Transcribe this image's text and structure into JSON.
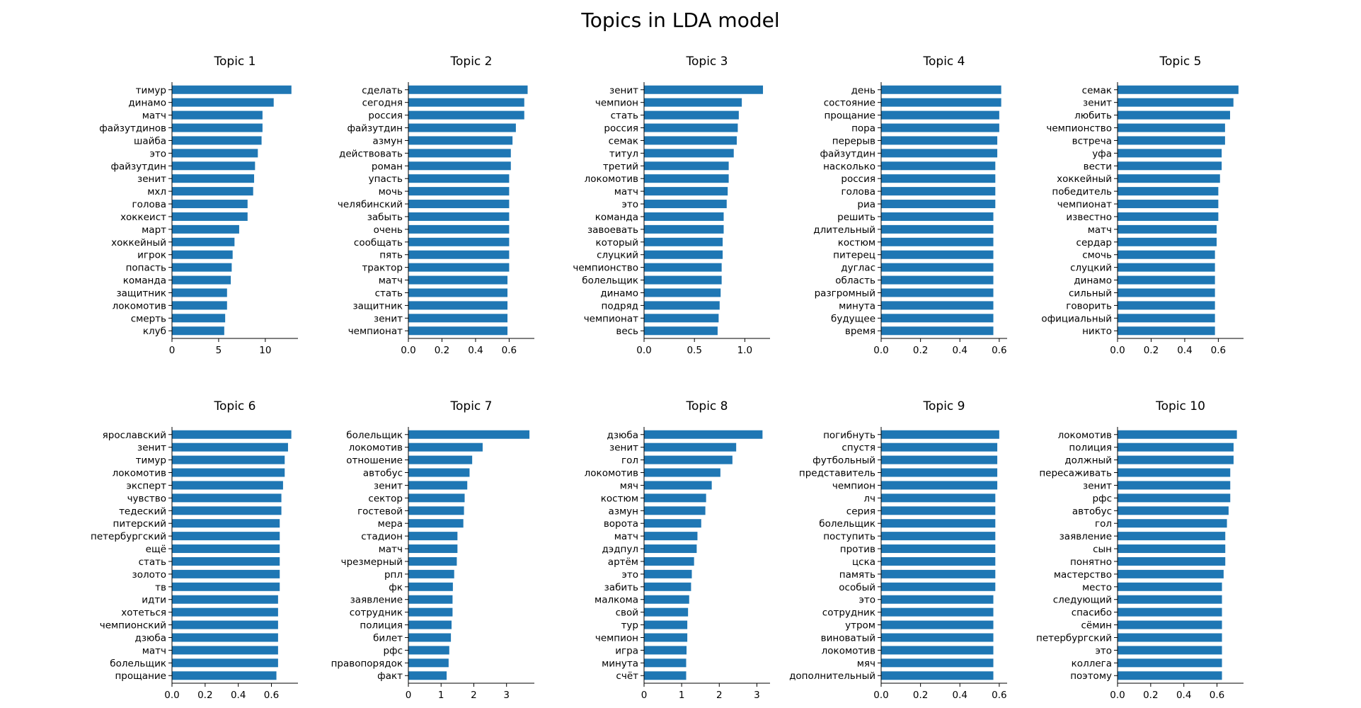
{
  "figure": {
    "title": "Topics in LDA model",
    "bar_color": "#1f77b4"
  },
  "chart_data": [
    {
      "type": "bar",
      "orientation": "horizontal",
      "title": "Topic 1",
      "categories": [
        "тимур",
        "динамо",
        "матч",
        "файзутдинов",
        "шайба",
        "это",
        "файзутдин",
        "зенит",
        "мхл",
        "голова",
        "хоккеист",
        "март",
        "хоккейный",
        "игрок",
        "попасть",
        "команда",
        "защитник",
        "локомотив",
        "смерть",
        "клуб"
      ],
      "values": [
        12.8,
        10.9,
        9.7,
        9.7,
        9.6,
        9.2,
        8.9,
        8.8,
        8.7,
        8.1,
        8.1,
        7.2,
        6.7,
        6.5,
        6.4,
        6.3,
        5.9,
        5.9,
        5.7,
        5.6
      ],
      "xlim": [
        0,
        13.5
      ],
      "xticks": [
        0,
        5,
        10
      ],
      "xtick_labels": [
        "0",
        "5",
        "10"
      ]
    },
    {
      "type": "bar",
      "orientation": "horizontal",
      "title": "Topic 2",
      "categories": [
        "сделать",
        "сегодня",
        "россия",
        "файзутдин",
        "азмун",
        "действовать",
        "роман",
        "упасть",
        "мочь",
        "челябинский",
        "забыть",
        "очень",
        "сообщать",
        "пять",
        "трактор",
        "матч",
        "стать",
        "защитник",
        "зенит",
        "чемпионат"
      ],
      "values": [
        0.71,
        0.69,
        0.69,
        0.64,
        0.62,
        0.61,
        0.61,
        0.6,
        0.6,
        0.6,
        0.6,
        0.6,
        0.6,
        0.6,
        0.6,
        0.59,
        0.59,
        0.59,
        0.59,
        0.59
      ],
      "xlim": [
        0,
        0.75
      ],
      "xticks": [
        0,
        0.2,
        0.4,
        0.6
      ],
      "xtick_labels": [
        "0.0",
        "0.2",
        "0.4",
        "0.6"
      ]
    },
    {
      "type": "bar",
      "orientation": "horizontal",
      "title": "Topic 3",
      "categories": [
        "зенит",
        "чемпион",
        "стать",
        "россия",
        "семак",
        "титул",
        "третий",
        "локомотив",
        "матч",
        "это",
        "команда",
        "завоевать",
        "который",
        "слуцкий",
        "чемпионство",
        "болельщик",
        "динамо",
        "подряд",
        "чемпионат",
        "весь"
      ],
      "values": [
        1.18,
        0.97,
        0.94,
        0.93,
        0.92,
        0.89,
        0.84,
        0.84,
        0.83,
        0.82,
        0.79,
        0.79,
        0.78,
        0.78,
        0.77,
        0.77,
        0.76,
        0.75,
        0.74,
        0.73
      ],
      "xlim": [
        0,
        1.25
      ],
      "xticks": [
        0,
        0.5,
        1.0
      ],
      "xtick_labels": [
        "0.0",
        "0.5",
        "1.0"
      ]
    },
    {
      "type": "bar",
      "orientation": "horizontal",
      "title": "Topic 4",
      "categories": [
        "день",
        "состояние",
        "прощание",
        "пора",
        "перерыв",
        "файзутдин",
        "насколько",
        "россия",
        "голова",
        "риа",
        "решить",
        "длительный",
        "костюм",
        "питерец",
        "дуглас",
        "область",
        "разгромный",
        "минута",
        "будущее",
        "время"
      ],
      "values": [
        0.61,
        0.61,
        0.6,
        0.6,
        0.59,
        0.59,
        0.58,
        0.58,
        0.58,
        0.58,
        0.57,
        0.57,
        0.57,
        0.57,
        0.57,
        0.57,
        0.57,
        0.57,
        0.57,
        0.57
      ],
      "xlim": [
        0,
        0.64
      ],
      "xticks": [
        0,
        0.2,
        0.4,
        0.6
      ],
      "xtick_labels": [
        "0.0",
        "0.2",
        "0.4",
        "0.6"
      ]
    },
    {
      "type": "bar",
      "orientation": "horizontal",
      "title": "Topic 5",
      "categories": [
        "семак",
        "зенит",
        "любить",
        "чемпионство",
        "встреча",
        "уфа",
        "вести",
        "хоккейный",
        "победитель",
        "чемпионат",
        "известно",
        "матч",
        "сердар",
        "смочь",
        "слуцкий",
        "динамо",
        "сильный",
        "говорить",
        "официальный",
        "никто"
      ],
      "values": [
        0.72,
        0.69,
        0.67,
        0.64,
        0.64,
        0.62,
        0.62,
        0.61,
        0.6,
        0.6,
        0.6,
        0.59,
        0.59,
        0.58,
        0.58,
        0.58,
        0.58,
        0.58,
        0.58,
        0.58
      ],
      "xlim": [
        0,
        0.75
      ],
      "xticks": [
        0,
        0.2,
        0.4,
        0.6
      ],
      "xtick_labels": [
        "0.0",
        "0.2",
        "0.4",
        "0.6"
      ]
    },
    {
      "type": "bar",
      "orientation": "horizontal",
      "title": "Topic 6",
      "categories": [
        "ярославский",
        "зенит",
        "тимур",
        "локомотив",
        "эксперт",
        "чувство",
        "тедеский",
        "питерский",
        "петербургский",
        "ещё",
        "стать",
        "золото",
        "тв",
        "идти",
        "хотеться",
        "чемпионский",
        "дзюба",
        "матч",
        "болельщик",
        "прощание"
      ],
      "values": [
        0.72,
        0.7,
        0.68,
        0.68,
        0.67,
        0.66,
        0.66,
        0.65,
        0.65,
        0.65,
        0.65,
        0.65,
        0.65,
        0.64,
        0.64,
        0.64,
        0.64,
        0.64,
        0.64,
        0.63
      ],
      "xlim": [
        0,
        0.76
      ],
      "xticks": [
        0,
        0.2,
        0.4,
        0.6
      ],
      "xtick_labels": [
        "0.0",
        "0.2",
        "0.4",
        "0.6"
      ]
    },
    {
      "type": "bar",
      "orientation": "horizontal",
      "title": "Topic 7",
      "categories": [
        "болельщик",
        "локомотив",
        "отношение",
        "автобус",
        "зенит",
        "сектор",
        "гостевой",
        "мера",
        "стадион",
        "матч",
        "чрезмерный",
        "рпл",
        "фк",
        "заявление",
        "сотрудник",
        "полиция",
        "билет",
        "рфс",
        "правопорядок",
        "факт"
      ],
      "values": [
        3.7,
        2.27,
        1.95,
        1.87,
        1.8,
        1.72,
        1.7,
        1.68,
        1.5,
        1.5,
        1.48,
        1.4,
        1.36,
        1.35,
        1.35,
        1.32,
        1.3,
        1.25,
        1.23,
        1.17
      ],
      "xlim": [
        0,
        3.85
      ],
      "xticks": [
        0,
        1,
        2,
        3
      ],
      "xtick_labels": [
        "0",
        "1",
        "2",
        "3"
      ]
    },
    {
      "type": "bar",
      "orientation": "horizontal",
      "title": "Topic 8",
      "categories": [
        "дзюба",
        "зенит",
        "гол",
        "локомотив",
        "мяч",
        "костюм",
        "азмун",
        "ворота",
        "матч",
        "дэдпул",
        "артём",
        "это",
        "забить",
        "малкома",
        "свой",
        "тур",
        "чемпион",
        "игра",
        "минута",
        "счёт"
      ],
      "values": [
        3.15,
        2.45,
        2.35,
        2.03,
        1.8,
        1.65,
        1.63,
        1.52,
        1.42,
        1.4,
        1.33,
        1.27,
        1.25,
        1.2,
        1.17,
        1.15,
        1.15,
        1.13,
        1.12,
        1.12
      ],
      "xlim": [
        0,
        3.35
      ],
      "xticks": [
        0,
        1,
        2,
        3
      ],
      "xtick_labels": [
        "0",
        "1",
        "2",
        "3"
      ]
    },
    {
      "type": "bar",
      "orientation": "horizontal",
      "title": "Topic 9",
      "categories": [
        "погибнуть",
        "спустя",
        "футбольный",
        "представитель",
        "чемпион",
        "лч",
        "серия",
        "болельщик",
        "поступить",
        "против",
        "цска",
        "память",
        "особый",
        "это",
        "сотрудник",
        "утром",
        "виноватый",
        "локомотив",
        "мяч",
        "дополнительный"
      ],
      "values": [
        0.6,
        0.59,
        0.59,
        0.59,
        0.59,
        0.58,
        0.58,
        0.58,
        0.58,
        0.58,
        0.58,
        0.58,
        0.58,
        0.57,
        0.57,
        0.57,
        0.57,
        0.57,
        0.57,
        0.57
      ],
      "xlim": [
        0,
        0.64
      ],
      "xticks": [
        0,
        0.2,
        0.4,
        0.6
      ],
      "xtick_labels": [
        "0.0",
        "0.2",
        "0.4",
        "0.6"
      ]
    },
    {
      "type": "bar",
      "orientation": "horizontal",
      "title": "Topic 10",
      "categories": [
        "локомотив",
        "полиция",
        "должный",
        "пересаживать",
        "зенит",
        "рфс",
        "автобус",
        "гол",
        "заявление",
        "сын",
        "понятно",
        "мастерство",
        "место",
        "следующий",
        "спасибо",
        "сёмин",
        "петербургский",
        "это",
        "коллега",
        "поэтому"
      ],
      "values": [
        0.72,
        0.7,
        0.7,
        0.68,
        0.68,
        0.68,
        0.67,
        0.66,
        0.65,
        0.65,
        0.65,
        0.64,
        0.63,
        0.63,
        0.63,
        0.63,
        0.63,
        0.63,
        0.63,
        0.63
      ],
      "xlim": [
        0,
        0.76
      ],
      "xticks": [
        0,
        0.2,
        0.4,
        0.6
      ],
      "xtick_labels": [
        "0.0",
        "0.2",
        "0.4",
        "0.6"
      ]
    }
  ]
}
